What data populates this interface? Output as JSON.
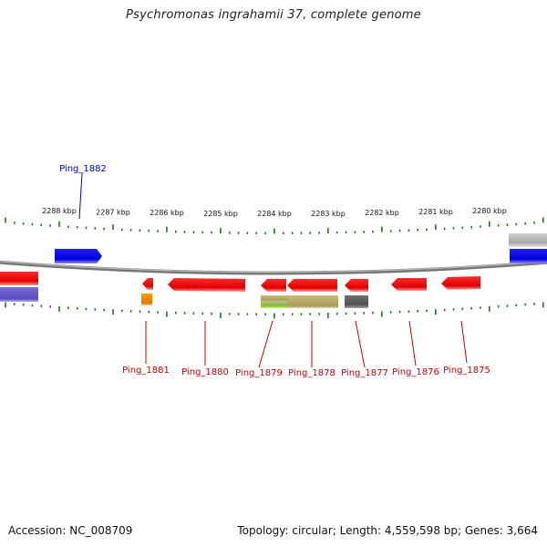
{
  "title": "Psychromonas ingrahamii 37, complete genome",
  "footer": {
    "accession": "Accession: NC_008709",
    "summary": "Topology: circular; Length: 4,559,598 bp; Genes: 3,664"
  },
  "scale_ticks": [
    "2288 kbp",
    "2287 kbp",
    "2286 kbp",
    "2285 kbp",
    "2284 kbp",
    "2283 kbp",
    "2282 kbp",
    "2281 kbp",
    "2280 kbp"
  ],
  "genes_top": [
    {
      "label": "Ping_1882",
      "color": "#0000cc"
    }
  ],
  "genes_bottom": [
    {
      "label": "Ping_1881",
      "color": "#cc0000"
    },
    {
      "label": "Ping_1880",
      "color": "#cc0000"
    },
    {
      "label": "Ping_1879",
      "color": "#cc0000"
    },
    {
      "label": "Ping_1878",
      "color": "#cc0000"
    },
    {
      "label": "Ping_1877",
      "color": "#cc0000"
    },
    {
      "label": "Ping_1876",
      "color": "#cc0000"
    },
    {
      "label": "Ping_1875",
      "color": "#cc0000"
    }
  ],
  "colors": {
    "cds_forward": "#1010e0",
    "cds_reverse": "#ee0000",
    "tick": "#1a7a1a",
    "backbone": "#888888",
    "label_forward": "#0000cc",
    "label_reverse": "#cc0000"
  }
}
